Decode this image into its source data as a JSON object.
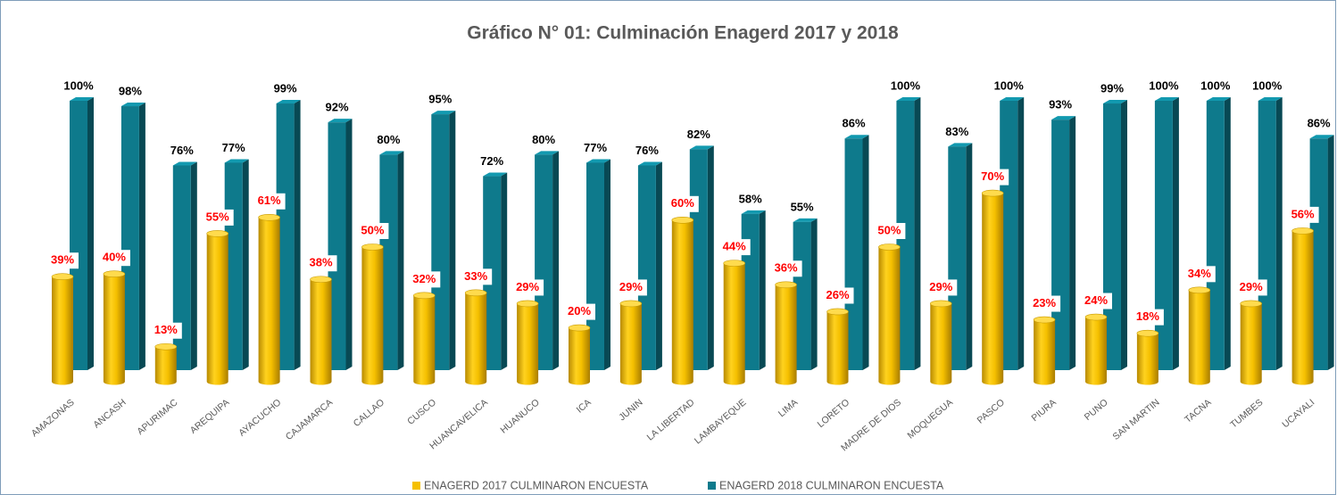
{
  "chart_data": {
    "type": "bar3d",
    "title": "Gráfico N° 01: Culminación Enagerd 2017 y 2018",
    "categories": [
      "AMAZONAS",
      "ANCASH",
      "APURIMAC",
      "AREQUIPA",
      "AYACUCHO",
      "CAJAMARCA",
      "CALLAO",
      "CUSCO",
      "HUANCAVELICA",
      "HUANUCO",
      "ICA",
      "JUNIN",
      "LA LIBERTAD",
      "LAMBAYEQUE",
      "LIMA",
      "LORETO",
      "MADRE DE DIOS",
      "MOQUEGUA",
      "PASCO",
      "PIURA",
      "PUNO",
      "SAN MARTIN",
      "TACNA",
      "TUMBES",
      "UCAYALI"
    ],
    "series": [
      {
        "name": "ENAGERD 2017 CULMINARON ENCUESTA",
        "color": "#f5c000",
        "values": [
          39,
          40,
          13,
          55,
          61,
          38,
          50,
          32,
          33,
          29,
          20,
          29,
          60,
          44,
          36,
          26,
          50,
          29,
          70,
          23,
          24,
          18,
          34,
          29,
          56
        ],
        "value_labels": [
          "39%",
          "40%",
          "13%",
          "55%",
          "61%",
          "38%",
          "50%",
          "32%",
          "33%",
          "29%",
          "20%",
          "29%",
          "60%",
          "44%",
          "36%",
          "26%",
          "50%",
          "29%",
          "70%",
          "23%",
          "24%",
          "18%",
          "34%",
          "29%",
          "56%"
        ]
      },
      {
        "name": "ENAGERD 2018 CULMINARON ENCUESTA",
        "color": "#0e7a8c",
        "values": [
          100,
          98,
          76,
          77,
          99,
          92,
          80,
          95,
          72,
          80,
          77,
          76,
          82,
          58,
          55,
          86,
          100,
          83,
          100,
          93,
          99,
          100,
          100,
          100,
          86
        ],
        "value_labels": [
          "100%",
          "98%",
          "76%",
          "77%",
          "99%",
          "92%",
          "80%",
          "95%",
          "72%",
          "80%",
          "77%",
          "76%",
          "82%",
          "58%",
          "55%",
          "86%",
          "100%",
          "83%",
          "100%",
          "93%",
          "99%",
          "100%",
          "100%",
          "100%",
          "86%"
        ]
      }
    ],
    "legend": "bottom"
  }
}
